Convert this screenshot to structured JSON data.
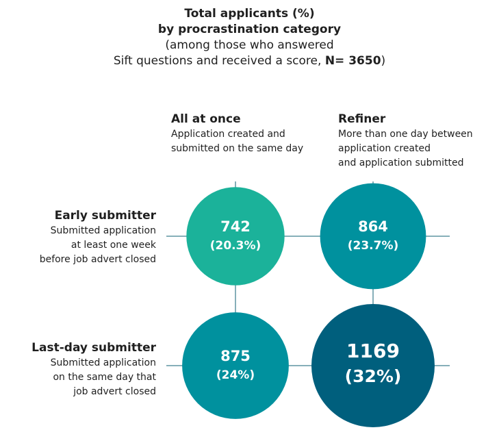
{
  "title": {
    "line1": "Total applicants (%)",
    "line2": "by procrastination category",
    "line3": "(among those who answered",
    "line4_prefix": "Sift questions and received a score, ",
    "line4_n": "N= 3650",
    "line4_suffix": ")"
  },
  "columns": [
    {
      "title": "All at once",
      "desc": [
        "Application created and",
        "submitted on the same day"
      ]
    },
    {
      "title": "Refiner",
      "desc": [
        "More than one day between",
        "application created",
        "and application submitted"
      ]
    }
  ],
  "rows": [
    {
      "title": "Early submitter",
      "desc": [
        "Submitted application",
        "at least one week",
        "before job advert closed"
      ]
    },
    {
      "title": "Last-day submitter",
      "desc": [
        "Submitted application",
        "on the same day that",
        "job advert closed"
      ]
    }
  ],
  "colors": {
    "line": "#0e5f73",
    "bubbles": [
      "#1bb29a",
      "#00919e",
      "#00919e",
      "#005f7d"
    ]
  },
  "chart_data": {
    "type": "bubble-matrix",
    "x_categories": [
      "All at once",
      "Refiner"
    ],
    "y_categories": [
      "Early submitter",
      "Last-day submitter"
    ],
    "cells": [
      {
        "row": "Early submitter",
        "column": "All at once",
        "count": 742,
        "count_label": "742",
        "percent_label": "(20.3%)"
      },
      {
        "row": "Early submitter",
        "column": "Refiner",
        "count": 864,
        "count_label": "864",
        "percent_label": "(23.7%)"
      },
      {
        "row": "Last-day submitter",
        "column": "All at once",
        "count": 875,
        "count_label": "875",
        "percent_label": "(24%)"
      },
      {
        "row": "Last-day submitter",
        "column": "Refiner",
        "count": 1169,
        "count_label": "1169",
        "percent_label": "(32%)"
      }
    ]
  }
}
